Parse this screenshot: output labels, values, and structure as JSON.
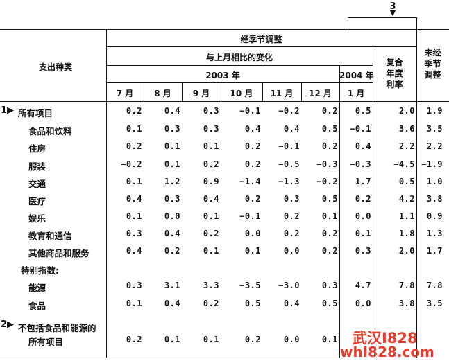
{
  "header": {
    "expense_type": "支出种类",
    "seasonally_adjusted": "经季节调整",
    "change_from_prev_month": "与上月相比的变化",
    "year_2003": "2003 年",
    "year_2004": "2004 年",
    "compound_annual_line1": "复合",
    "compound_annual_line2": "年度",
    "compound_annual_line3": "利率",
    "unadjusted_line1": "未经",
    "unadjusted_line2": "季节",
    "unadjusted_line3": "调整",
    "months": [
      "7 月",
      "8 月",
      "9 月",
      "10 月",
      "11 月",
      "12 月",
      "1 月"
    ],
    "callout_number": "3",
    "callout_arrow": "▼"
  },
  "markers": {
    "m1": "1▶",
    "m2": "2▶"
  },
  "rows": [
    {
      "label": "所有项目",
      "values": [
        "0.2",
        "0.4",
        "0.3",
        "−0.1",
        "−0.2",
        "0.2",
        "0.5",
        "2.0",
        "1.9"
      ]
    },
    {
      "label": "食品和饮料",
      "values": [
        "0.1",
        "0.3",
        "0.3",
        "0.4",
        "0.4",
        "0.5",
        "−0.1",
        "3.6",
        "3.5"
      ]
    },
    {
      "label": "住房",
      "values": [
        "0.2",
        "0.1",
        "0.1",
        "0.2",
        "−0.1",
        "0.2",
        "0.4",
        "2.2",
        "2.2"
      ]
    },
    {
      "label": "服装",
      "values": [
        "−0.2",
        "0.1",
        "0.2",
        "0.2",
        "−0.5",
        "−0.3",
        "−0.3",
        "−4.5",
        "−1.9"
      ]
    },
    {
      "label": "交通",
      "values": [
        "0.1",
        "1.2",
        "0.9",
        "−1.4",
        "−1.3",
        "−0.2",
        "1.7",
        "0.5",
        "1.0"
      ]
    },
    {
      "label": "医疗",
      "values": [
        "0.4",
        "0.3",
        "0.4",
        "0.2",
        "0.3",
        "0.5",
        "0.2",
        "4.2",
        "3.8"
      ]
    },
    {
      "label": "娱乐",
      "values": [
        "0.1",
        "0.0",
        "0.1",
        "−0.1",
        "0.2",
        "0.1",
        "0.0",
        "1.1",
        "0.9"
      ]
    },
    {
      "label": "教育和通信",
      "values": [
        "0.3",
        "0.4",
        "0.2",
        "0.0",
        "0.2",
        "0.2",
        "0.1",
        "1.8",
        "1.3"
      ]
    },
    {
      "label": "其他商品和服务",
      "values": [
        "0.4",
        "0.2",
        "0.1",
        "0.1",
        "0.0",
        "0.2",
        "0.3",
        "2.0",
        "1.7"
      ]
    }
  ],
  "special_heading": "特别指数:",
  "special_rows": [
    {
      "label": "能源",
      "values": [
        "0.3",
        "3.1",
        "3.3",
        "−3.5",
        "−3.0",
        "0.3",
        "4.7",
        "7.8",
        "7.8"
      ]
    },
    {
      "label": "食品",
      "values": [
        "0.1",
        "0.4",
        "0.2",
        "0.5",
        "0.4",
        "0.5",
        "0.0",
        "3.8",
        "3.5"
      ]
    }
  ],
  "core_row": {
    "label_line1": "不包括食品和能源的",
    "label_line2": "所有项目",
    "values": [
      "0.2",
      "0.1",
      "0.1",
      "0.2",
      "0.0",
      "0.1",
      "",
      "",
      ""
    ]
  },
  "watermark": {
    "line1": "武汉I828",
    "line2": "whI828.com"
  }
}
